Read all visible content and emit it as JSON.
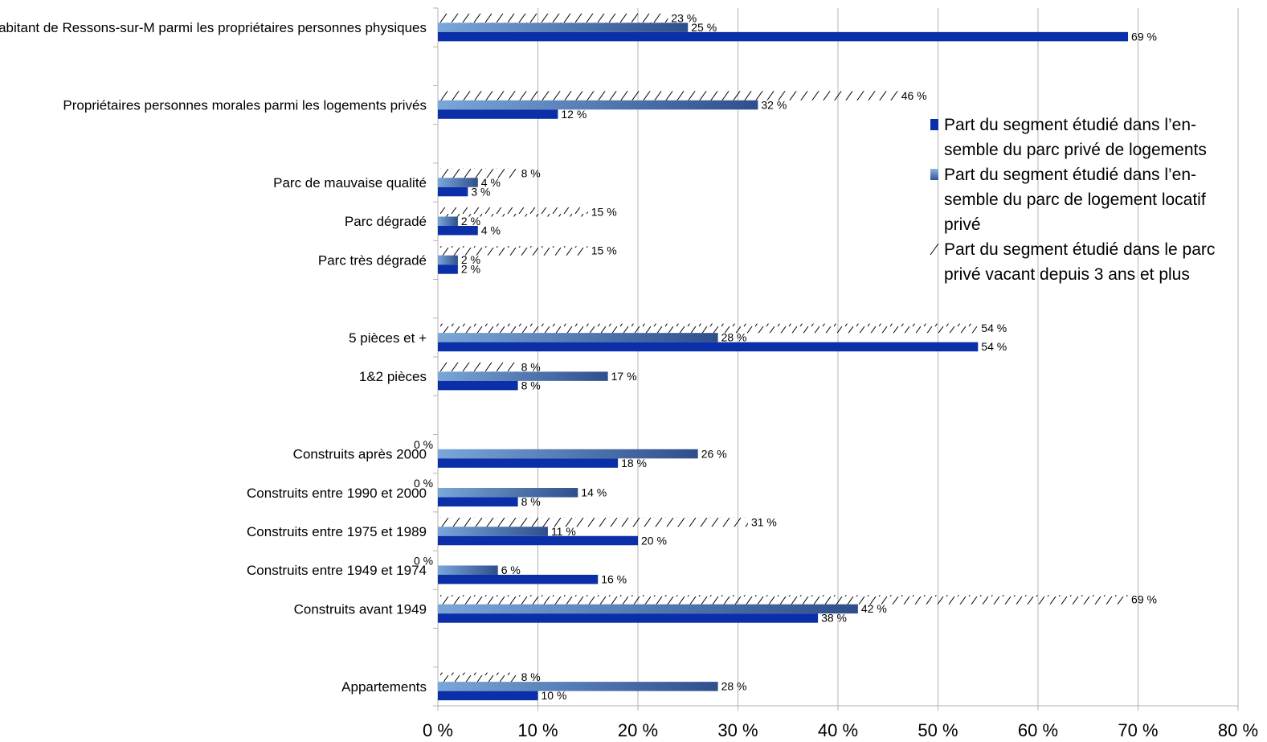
{
  "chart_data": {
    "type": "bar",
    "orientation": "horizontal",
    "title": "",
    "xlabel": "",
    "ylabel": "",
    "xlim": [
      0,
      80
    ],
    "x_ticks": [
      "0 %",
      "10 %",
      "20 %",
      "30 %",
      "40 %",
      "50 %",
      "60 %",
      "70 %",
      "80 %"
    ],
    "grid": true,
    "legend_position": "right",
    "value_suffix": " %",
    "categories": [
      "Habitant de Ressons-sur-M parmi les propriétaires personnes physiques",
      "",
      "Propriétaires personnes morales parmi les logements privés",
      "",
      "Parc de mauvaise qualité",
      "Parc dégradé",
      "Parc très dégradé",
      "",
      "5 pièces et +",
      "1&2 pièces",
      "",
      "Construits après 2000",
      "Construits entre 1990 et 2000",
      "Construits entre 1975 et 1989",
      "Construits entre 1949 et 1974",
      "Construits avant 1949",
      "",
      "Appartements"
    ],
    "series": [
      {
        "name": "Part du segment étudié dans l’ensemble du parc privé de logements",
        "legend_lines": [
          "Part du segment étudié dans l’en-",
          "semble du parc privé de logements"
        ],
        "color": "#0a2fa8",
        "style": "solid",
        "values": [
          69,
          null,
          12,
          null,
          3,
          4,
          2,
          null,
          54,
          8,
          null,
          18,
          8,
          20,
          16,
          38,
          null,
          10
        ]
      },
      {
        "name": "Part du segment étudié dans l’ensemble du parc de logement locatif privé",
        "legend_lines": [
          "Part du segment étudié dans l’en-",
          "semble du parc de logement locatif",
          "privé"
        ],
        "color": "#2f5597",
        "style": "gradient",
        "values": [
          25,
          null,
          32,
          null,
          4,
          2,
          2,
          null,
          28,
          17,
          null,
          26,
          14,
          11,
          6,
          42,
          null,
          28
        ]
      },
      {
        "name": "Part du segment étudié dans le parc privé vacant depuis 3 ans et plus",
        "legend_lines": [
          "Part du segment étudié dans le parc",
          "privé vacant depuis 3 ans et plus"
        ],
        "color": "#000000",
        "style": "hatched",
        "values": [
          23,
          null,
          46,
          null,
          8,
          15,
          15,
          null,
          54,
          8,
          null,
          0,
          0,
          31,
          0,
          69,
          null,
          8
        ]
      }
    ]
  }
}
